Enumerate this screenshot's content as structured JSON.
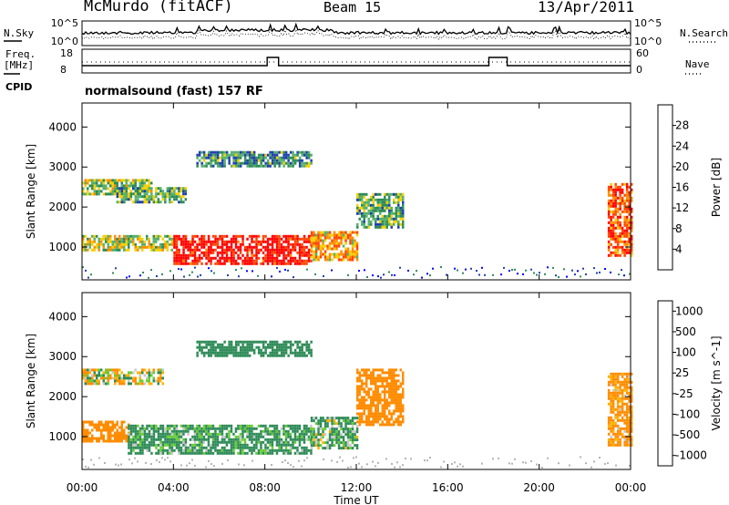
{
  "header": {
    "station": "McMurdo (fitACF)",
    "beam": "Beam 15",
    "date": "13/Apr/2011"
  },
  "noise_panel": {
    "left_label": "N.Sky",
    "right_label": "N.Search",
    "tick_top": "10^5",
    "tick_bottom": "10^0",
    "left_ticks": [
      "10^5",
      "10^0"
    ],
    "right_ticks": [
      "10^5",
      "10^0"
    ]
  },
  "freq_panel": {
    "left_label_1": "Freq.",
    "left_label_2": "[MHz]",
    "right_label": "Nave",
    "left_ticks": [
      "18",
      "8"
    ],
    "right_ticks": [
      "60",
      "0"
    ],
    "cpid_label": "CPID",
    "mode_text": "normalsound (fast) 157 RF"
  },
  "colors": {
    "power": [
      "#0000ff",
      "#1f3fae",
      "#2e8b57",
      "#56b06b",
      "#f5d000",
      "#ff8c00",
      "#ff4500",
      "#ff0000"
    ],
    "velocity": [
      "#ff0000",
      "#ff4500",
      "#ff8c00",
      "#ffb000",
      "#c8c8c8",
      "#66cc33",
      "#2e8b57",
      "#336699",
      "#1f3fae"
    ],
    "ground_scatter": "#b4b4b4"
  },
  "chart_data": [
    {
      "type": "heatmap",
      "title": "",
      "xlabel": "",
      "ylabel": "Slant Range [km]",
      "x_ticks": [
        "00:00",
        "04:00",
        "08:00",
        "12:00",
        "16:00",
        "20:00",
        "00:00"
      ],
      "x_range_hours": [
        0,
        24
      ],
      "y_ticks": [
        1000,
        2000,
        3000,
        4000
      ],
      "ylim": [
        180,
        4600
      ],
      "colorbar_label": "Power [dB]",
      "colorbar_ticks": [
        "28",
        "24",
        "20",
        "16",
        "12",
        "8",
        "4"
      ],
      "scale": [
        0,
        30
      ],
      "regions": [
        {
          "t": [
            0.0,
            3.0
          ],
          "r": [
            2350,
            2700
          ],
          "value": 14
        },
        {
          "t": [
            1.5,
            4.5
          ],
          "r": [
            2150,
            2500
          ],
          "value": 12
        },
        {
          "t": [
            0.0,
            4.0
          ],
          "r": [
            900,
            1300
          ],
          "value": 16
        },
        {
          "t": [
            4.0,
            10.0
          ],
          "r": [
            600,
            1300
          ],
          "value": 28
        },
        {
          "t": [
            10.0,
            12.0
          ],
          "r": [
            700,
            1400
          ],
          "value": 20
        },
        {
          "t": [
            12.0,
            14.0
          ],
          "r": [
            1500,
            2350
          ],
          "value": 12
        },
        {
          "t": [
            5.0,
            10.0
          ],
          "r": [
            3000,
            3400
          ],
          "value": 10
        },
        {
          "t": [
            23.0,
            24.0
          ],
          "r": [
            800,
            2600
          ],
          "value": 24
        }
      ]
    },
    {
      "type": "heatmap",
      "title": "",
      "xlabel": "Time UT",
      "ylabel": "Slant Range [km]",
      "x_ticks": [
        "00:00",
        "04:00",
        "08:00",
        "12:00",
        "16:00",
        "20:00",
        "00:00"
      ],
      "x_range_hours": [
        0,
        24
      ],
      "y_ticks": [
        1000,
        2000,
        3000,
        4000
      ],
      "ylim": [
        180,
        4600
      ],
      "colorbar_label": "Velocity [m s^-1]",
      "colorbar_ticks": [
        "1000",
        "500",
        "100",
        "25",
        "-25",
        "-100",
        "-500",
        "-1000"
      ],
      "scale": [
        -1000,
        1000
      ],
      "regions": [
        {
          "t": [
            0.0,
            3.5
          ],
          "r": [
            2300,
            2700
          ],
          "value": 0
        },
        {
          "t": [
            0.0,
            2.0
          ],
          "r": [
            900,
            1400
          ],
          "value": -300
        },
        {
          "t": [
            2.0,
            10.0
          ],
          "r": [
            600,
            1300
          ],
          "value": 200
        },
        {
          "t": [
            10.0,
            12.0
          ],
          "r": [
            700,
            1500
          ],
          "value": 150
        },
        {
          "t": [
            12.0,
            14.0
          ],
          "r": [
            1300,
            2700
          ],
          "value": -300
        },
        {
          "t": [
            5.0,
            10.0
          ],
          "r": [
            3000,
            3400
          ],
          "value": 300
        },
        {
          "t": [
            23.0,
            24.0
          ],
          "r": [
            800,
            2600
          ],
          "value": -200
        }
      ]
    }
  ]
}
